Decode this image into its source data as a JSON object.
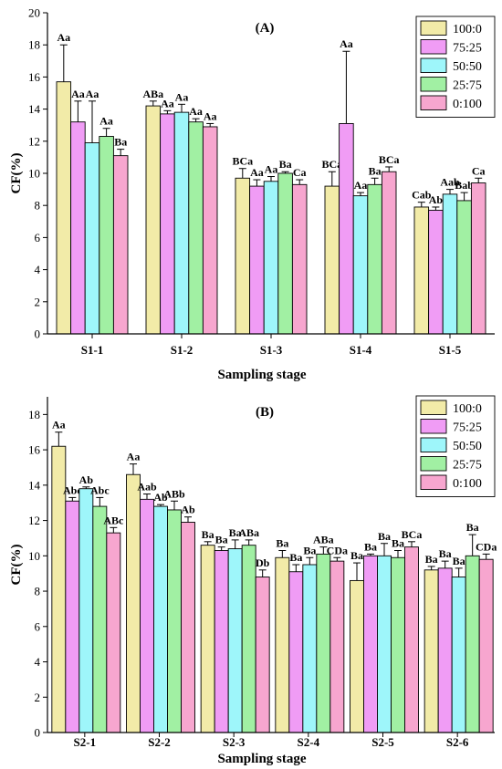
{
  "series_colors": [
    "#f2eba8",
    "#f09cf5",
    "#9ef6fa",
    "#a1f0a3",
    "#f7a6cf"
  ],
  "chart_data": [
    {
      "type": "bar",
      "title": "(A)",
      "xlabel": "Sampling stage",
      "ylabel": "CF(%)",
      "ylim": [
        0,
        20
      ],
      "yticks": [
        0,
        2,
        4,
        6,
        8,
        10,
        12,
        14,
        16,
        18,
        20
      ],
      "legend": "top-right",
      "categories": [
        "S1-1",
        "S1-2",
        "S1-3",
        "S1-4",
        "S1-5"
      ],
      "series": [
        {
          "name": "100:0",
          "values": [
            15.7,
            14.2,
            9.7,
            9.2,
            7.9
          ],
          "errors": [
            2.3,
            0.3,
            0.6,
            0.9,
            0.3
          ],
          "labels": [
            "Aa",
            "ABa",
            "BCa",
            "BCa",
            "Cab"
          ]
        },
        {
          "name": "75:25",
          "values": [
            13.2,
            13.7,
            9.2,
            13.1,
            7.7
          ],
          "errors": [
            1.3,
            0.2,
            0.4,
            4.5,
            0.2
          ],
          "labels": [
            "Aa",
            "Aa",
            "Aa",
            "Aa",
            "Ab"
          ]
        },
        {
          "name": "50:50",
          "values": [
            11.9,
            13.8,
            9.5,
            8.6,
            8.7
          ],
          "errors": [
            2.6,
            0.5,
            0.3,
            0.2,
            0.3
          ],
          "labels": [
            "Aa",
            "Aa",
            "Aa",
            "Aa",
            "Aab"
          ]
        },
        {
          "name": "25:75",
          "values": [
            12.3,
            13.2,
            10.0,
            9.3,
            8.3
          ],
          "errors": [
            0.5,
            0.2,
            0.1,
            0.4,
            0.5
          ],
          "labels": [
            "Aa",
            "Aa",
            "Ba",
            "Ba",
            "Bab"
          ]
        },
        {
          "name": "0:100",
          "values": [
            11.1,
            12.9,
            9.3,
            10.1,
            9.4
          ],
          "errors": [
            0.4,
            0.2,
            0.3,
            0.3,
            0.3
          ],
          "labels": [
            "Ba",
            "Aa",
            "Ca",
            "BCa",
            "Ca"
          ]
        }
      ]
    },
    {
      "type": "bar",
      "title": "(B)",
      "xlabel": "Sampling stage",
      "ylabel": "CF(%)",
      "ylim": [
        0,
        19
      ],
      "yticks": [
        0,
        2,
        4,
        6,
        8,
        10,
        12,
        14,
        16,
        18
      ],
      "legend": "top-right",
      "categories": [
        "S2-1",
        "S2-2",
        "S2-3",
        "S2-4",
        "S2-5",
        "S2-6"
      ],
      "series": [
        {
          "name": "100:0",
          "values": [
            16.2,
            14.6,
            10.6,
            9.9,
            8.6,
            9.2
          ],
          "errors": [
            0.8,
            0.6,
            0.2,
            0.4,
            1.0,
            0.2
          ],
          "labels": [
            "Aa",
            "Aa",
            "Ba",
            "Ba",
            "Ba",
            "Ba"
          ]
        },
        {
          "name": "75:25",
          "values": [
            13.1,
            13.2,
            10.3,
            9.1,
            10.0,
            9.3
          ],
          "errors": [
            0.2,
            0.3,
            0.2,
            0.4,
            0.1,
            0.4
          ],
          "labels": [
            "Abc",
            "Aab",
            "Ba",
            "Ba",
            "Ba",
            "Ba"
          ]
        },
        {
          "name": "50:50",
          "values": [
            13.8,
            12.8,
            10.4,
            9.5,
            10.0,
            8.8
          ],
          "errors": [
            0.1,
            0.1,
            0.5,
            0.4,
            0.7,
            0.5
          ],
          "labels": [
            "Ab",
            "Ab",
            "Ba",
            "Ba",
            "Ba",
            "Ba"
          ]
        },
        {
          "name": "25:75",
          "values": [
            12.8,
            12.6,
            10.6,
            10.1,
            9.9,
            10.0
          ],
          "errors": [
            0.5,
            0.5,
            0.3,
            0.4,
            0.4,
            1.2
          ],
          "labels": [
            "Abc",
            "ABb",
            "ABa",
            "ABa",
            "Ba",
            "Ba"
          ]
        },
        {
          "name": "0:100",
          "values": [
            11.3,
            11.9,
            8.8,
            9.7,
            10.5,
            9.8
          ],
          "errors": [
            0.3,
            0.3,
            0.4,
            0.2,
            0.3,
            0.3
          ],
          "labels": [
            "ABc",
            "Ab",
            "Db",
            "CDa",
            "BCa",
            "CDa"
          ]
        }
      ]
    }
  ]
}
